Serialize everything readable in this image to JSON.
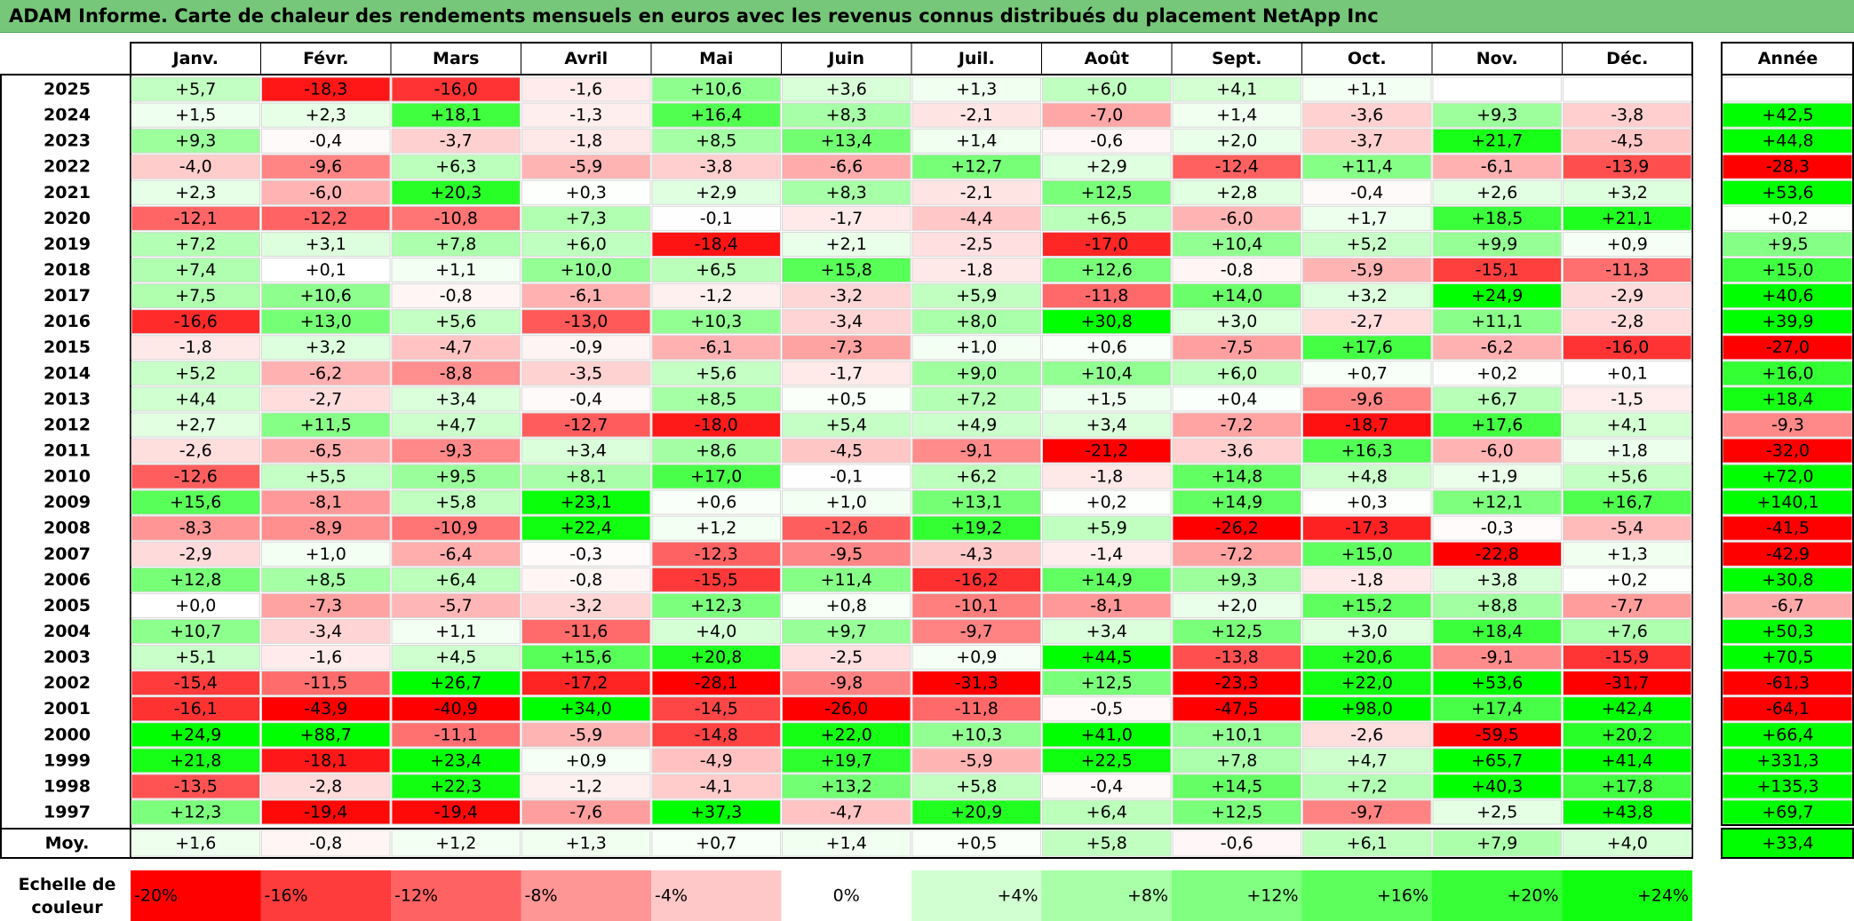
{
  "title": "ADAM Informe. Carte de chaleur des rendements mensuels en euros avec les revenus connus distribués du placement NetApp Inc",
  "chart_data": {
    "type": "heatmap",
    "months": [
      "Janv.",
      "Févr.",
      "Mars",
      "Avril",
      "Mai",
      "Juin",
      "Juil.",
      "Août",
      "Sept.",
      "Oct.",
      "Nov.",
      "Déc."
    ],
    "annual_header": "Année",
    "rows": [
      {
        "year": "2025",
        "values": [
          "+5,7",
          "-18,3",
          "-16,0",
          "-1,6",
          "+10,6",
          "+3,6",
          "+1,3",
          "+6,0",
          "+4,1",
          "+1,1",
          "",
          ""
        ],
        "annual": ""
      },
      {
        "year": "2024",
        "values": [
          "+1,5",
          "+2,3",
          "+18,1",
          "-1,3",
          "+16,4",
          "+8,3",
          "-2,1",
          "-7,0",
          "+1,4",
          "-3,6",
          "+9,3",
          "-3,8"
        ],
        "annual": "+42,5"
      },
      {
        "year": "2023",
        "values": [
          "+9,3",
          "-0,4",
          "-3,7",
          "-1,8",
          "+8,5",
          "+13,4",
          "+1,4",
          "-0,6",
          "+2,0",
          "-3,7",
          "+21,7",
          "-4,5"
        ],
        "annual": "+44,8"
      },
      {
        "year": "2022",
        "values": [
          "-4,0",
          "-9,6",
          "+6,3",
          "-5,9",
          "-3,8",
          "-6,6",
          "+12,7",
          "+2,9",
          "-12,4",
          "+11,4",
          "-6,1",
          "-13,9"
        ],
        "annual": "-28,3"
      },
      {
        "year": "2021",
        "values": [
          "+2,3",
          "-6,0",
          "+20,3",
          "+0,3",
          "+2,9",
          "+8,3",
          "-2,1",
          "+12,5",
          "+2,8",
          "-0,4",
          "+2,6",
          "+3,2"
        ],
        "annual": "+53,6"
      },
      {
        "year": "2020",
        "values": [
          "-12,1",
          "-12,2",
          "-10,8",
          "+7,3",
          "-0,1",
          "-1,7",
          "-4,4",
          "+6,5",
          "-6,0",
          "+1,7",
          "+18,5",
          "+21,1"
        ],
        "annual": "+0,2"
      },
      {
        "year": "2019",
        "values": [
          "+7,2",
          "+3,1",
          "+7,8",
          "+6,0",
          "-18,4",
          "+2,1",
          "-2,5",
          "-17,0",
          "+10,4",
          "+5,2",
          "+9,9",
          "+0,9"
        ],
        "annual": "+9,5"
      },
      {
        "year": "2018",
        "values": [
          "+7,4",
          "+0,1",
          "+1,1",
          "+10,0",
          "+6,5",
          "+15,8",
          "-1,8",
          "+12,6",
          "-0,8",
          "-5,9",
          "-15,1",
          "-11,3"
        ],
        "annual": "+15,0"
      },
      {
        "year": "2017",
        "values": [
          "+7,5",
          "+10,6",
          "-0,8",
          "-6,1",
          "-1,2",
          "-3,2",
          "+5,9",
          "-11,8",
          "+14,0",
          "+3,2",
          "+24,9",
          "-2,9"
        ],
        "annual": "+40,6"
      },
      {
        "year": "2016",
        "values": [
          "-16,6",
          "+13,0",
          "+5,6",
          "-13,0",
          "+10,3",
          "-3,4",
          "+8,0",
          "+30,8",
          "+3,0",
          "-2,7",
          "+11,1",
          "-2,8"
        ],
        "annual": "+39,9"
      },
      {
        "year": "2015",
        "values": [
          "-1,8",
          "+3,2",
          "-4,7",
          "-0,9",
          "-6,1",
          "-7,3",
          "+1,0",
          "+0,6",
          "-7,5",
          "+17,6",
          "-6,2",
          "-16,0"
        ],
        "annual": "-27,0"
      },
      {
        "year": "2014",
        "values": [
          "+5,2",
          "-6,2",
          "-8,8",
          "-3,5",
          "+5,6",
          "-1,7",
          "+9,0",
          "+10,4",
          "+6,0",
          "+0,7",
          "+0,2",
          "+0,1"
        ],
        "annual": "+16,0"
      },
      {
        "year": "2013",
        "values": [
          "+4,4",
          "-2,7",
          "+3,4",
          "-0,4",
          "+8,5",
          "+0,5",
          "+7,2",
          "+1,5",
          "+0,4",
          "-9,6",
          "+6,7",
          "-1,5"
        ],
        "annual": "+18,4"
      },
      {
        "year": "2012",
        "values": [
          "+2,7",
          "+11,5",
          "+4,7",
          "-12,7",
          "-18,0",
          "+5,4",
          "+4,9",
          "+3,4",
          "-7,2",
          "-18,7",
          "+17,6",
          "+4,1"
        ],
        "annual": "-9,3"
      },
      {
        "year": "2011",
        "values": [
          "-2,6",
          "-6,5",
          "-9,3",
          "+3,4",
          "+8,6",
          "-4,5",
          "-9,1",
          "-21,2",
          "-3,6",
          "+16,3",
          "-6,0",
          "+1,8"
        ],
        "annual": "-32,0"
      },
      {
        "year": "2010",
        "values": [
          "-12,6",
          "+5,5",
          "+9,5",
          "+8,1",
          "+17,0",
          "-0,1",
          "+6,2",
          "-1,8",
          "+14,8",
          "+4,8",
          "+1,9",
          "+5,6"
        ],
        "annual": "+72,0"
      },
      {
        "year": "2009",
        "values": [
          "+15,6",
          "-8,1",
          "+5,8",
          "+23,1",
          "+0,6",
          "+1,0",
          "+13,1",
          "+0,2",
          "+14,9",
          "+0,3",
          "+12,1",
          "+16,7"
        ],
        "annual": "+140,1"
      },
      {
        "year": "2008",
        "values": [
          "-8,3",
          "-8,9",
          "-10,9",
          "+22,4",
          "+1,2",
          "-12,6",
          "+19,2",
          "+5,9",
          "-26,2",
          "-17,3",
          "-0,3",
          "-5,4"
        ],
        "annual": "-41,5"
      },
      {
        "year": "2007",
        "values": [
          "-2,9",
          "+1,0",
          "-6,4",
          "-0,3",
          "-12,3",
          "-9,5",
          "-4,3",
          "-1,4",
          "-7,2",
          "+15,0",
          "-22,8",
          "+1,3"
        ],
        "annual": "-42,9"
      },
      {
        "year": "2006",
        "values": [
          "+12,8",
          "+8,5",
          "+6,4",
          "-0,8",
          "-15,5",
          "+11,4",
          "-16,2",
          "+14,9",
          "+9,3",
          "-1,8",
          "+3,8",
          "+0,2"
        ],
        "annual": "+30,8"
      },
      {
        "year": "2005",
        "values": [
          "+0,0",
          "-7,3",
          "-5,7",
          "-3,2",
          "+12,3",
          "+0,8",
          "-10,1",
          "-8,1",
          "+2,0",
          "+15,2",
          "+8,8",
          "-7,7"
        ],
        "annual": "-6,7"
      },
      {
        "year": "2004",
        "values": [
          "+10,7",
          "-3,4",
          "+1,1",
          "-11,6",
          "+4,0",
          "+9,7",
          "-9,7",
          "+3,4",
          "+12,5",
          "+3,0",
          "+18,4",
          "+7,6"
        ],
        "annual": "+50,3"
      },
      {
        "year": "2003",
        "values": [
          "+5,1",
          "-1,6",
          "+4,5",
          "+15,6",
          "+20,8",
          "-2,5",
          "+0,9",
          "+44,5",
          "-13,8",
          "+20,6",
          "-9,1",
          "-15,9"
        ],
        "annual": "+70,5"
      },
      {
        "year": "2002",
        "values": [
          "-15,4",
          "-11,5",
          "+26,7",
          "-17,2",
          "-28,1",
          "-9,8",
          "-31,3",
          "+12,5",
          "-23,3",
          "+22,0",
          "+53,6",
          "-31,7"
        ],
        "annual": "-61,3"
      },
      {
        "year": "2001",
        "values": [
          "-16,1",
          "-43,9",
          "-40,9",
          "+34,0",
          "-14,5",
          "-26,0",
          "-11,8",
          "-0,5",
          "-47,5",
          "+98,0",
          "+17,4",
          "+42,4"
        ],
        "annual": "-64,1"
      },
      {
        "year": "2000",
        "values": [
          "+24,9",
          "+88,7",
          "-11,1",
          "-5,9",
          "-14,8",
          "+22,0",
          "+10,3",
          "+41,0",
          "+10,1",
          "-2,6",
          "-59,5",
          "+20,2"
        ],
        "annual": "+66,4"
      },
      {
        "year": "1999",
        "values": [
          "+21,8",
          "-18,1",
          "+23,4",
          "+0,9",
          "-4,9",
          "+19,7",
          "-5,9",
          "+22,5",
          "+7,8",
          "+4,7",
          "+65,7",
          "+41,4"
        ],
        "annual": "+331,3"
      },
      {
        "year": "1998",
        "values": [
          "-13,5",
          "-2,8",
          "+22,3",
          "-1,2",
          "-4,1",
          "+13,2",
          "+5,8",
          "-0,4",
          "+14,5",
          "+7,2",
          "+40,3",
          "+17,8"
        ],
        "annual": "+135,3"
      },
      {
        "year": "1997",
        "values": [
          "+12,3",
          "-19,4",
          "-19,4",
          "-7,6",
          "+37,3",
          "-4,7",
          "+20,9",
          "+6,4",
          "+12,5",
          "-9,7",
          "+2,5",
          "+43,8"
        ],
        "annual": "+69,7"
      }
    ],
    "average": {
      "label": "Moy.",
      "values": [
        "+1,6",
        "-0,8",
        "+1,2",
        "+1,3",
        "+0,7",
        "+1,4",
        "+0,5",
        "+5,8",
        "-0,6",
        "+6,1",
        "+7,9",
        "+4,0"
      ],
      "annual": "+33,4"
    },
    "scale": {
      "label_line1": "Echelle de",
      "label_line2": "couleur",
      "steps": [
        {
          "label": "-20%",
          "color": "#ff0000"
        },
        {
          "label": "-16%",
          "color": "#ff3c3c"
        },
        {
          "label": "-12%",
          "color": "#ff6262"
        },
        {
          "label": "-8%",
          "color": "#ff9696"
        },
        {
          "label": "-4%",
          "color": "#ffc8c8"
        },
        {
          "label": "0%",
          "color": "#ffffff"
        },
        {
          "label": "+4%",
          "color": "#d2ffd2"
        },
        {
          "label": "+8%",
          "color": "#a8ffa8"
        },
        {
          "label": "+12%",
          "color": "#80ff80"
        },
        {
          "label": "+16%",
          "color": "#5cff5c"
        },
        {
          "label": "+20%",
          "color": "#38ff38"
        },
        {
          "label": "+24%",
          "color": "#10ff10"
        }
      ]
    }
  }
}
